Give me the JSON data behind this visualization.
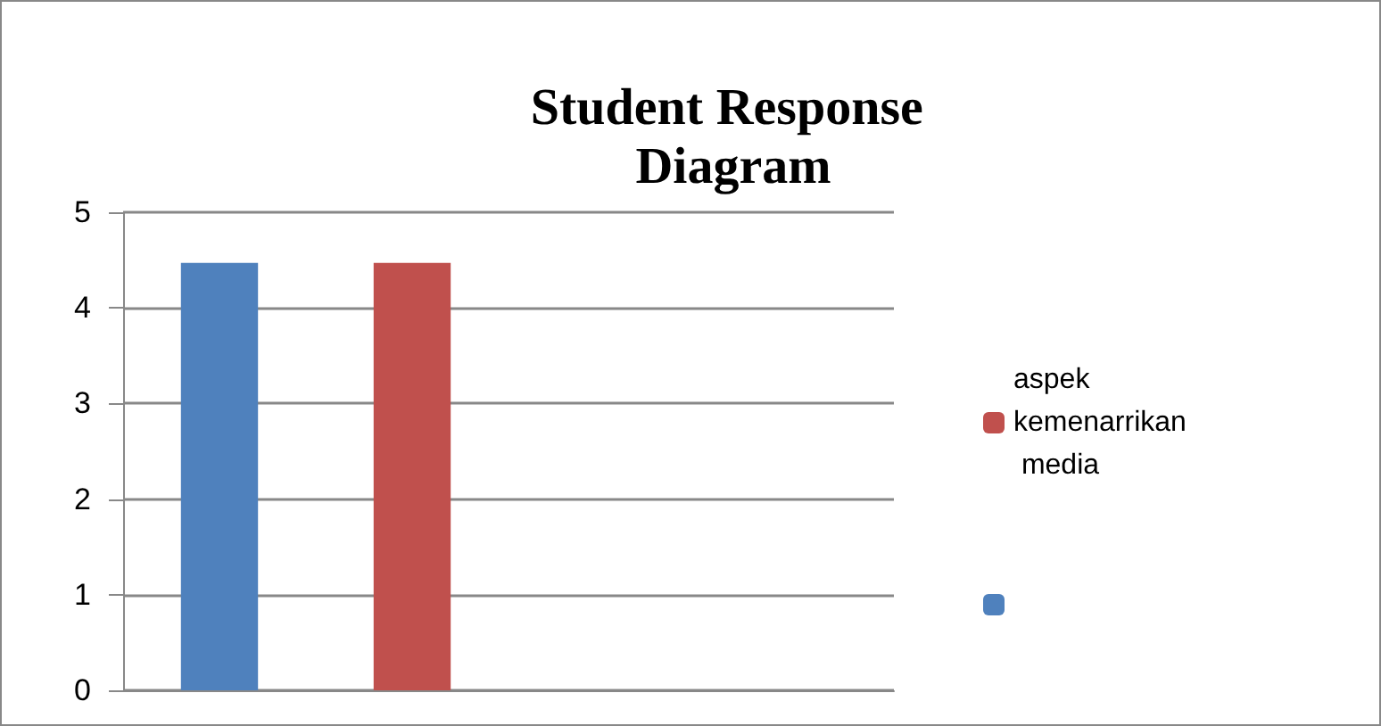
{
  "chart_data": {
    "type": "bar",
    "title": "Student Response Diagram",
    "categories": [
      null,
      null,
      null,
      null
    ],
    "series": [
      {
        "color": "#4f81bd",
        "values": [
          4.47,
          null,
          null,
          null
        ]
      },
      {
        "name": "aspek kemenarrikan media",
        "color": "#c0504d",
        "values": [
          null,
          4.47,
          null,
          null
        ]
      }
    ],
    "ylim": [
      0,
      5
    ],
    "yticks": [
      0,
      1,
      2,
      3,
      4,
      5
    ],
    "grid": "y",
    "legend": "right"
  }
}
